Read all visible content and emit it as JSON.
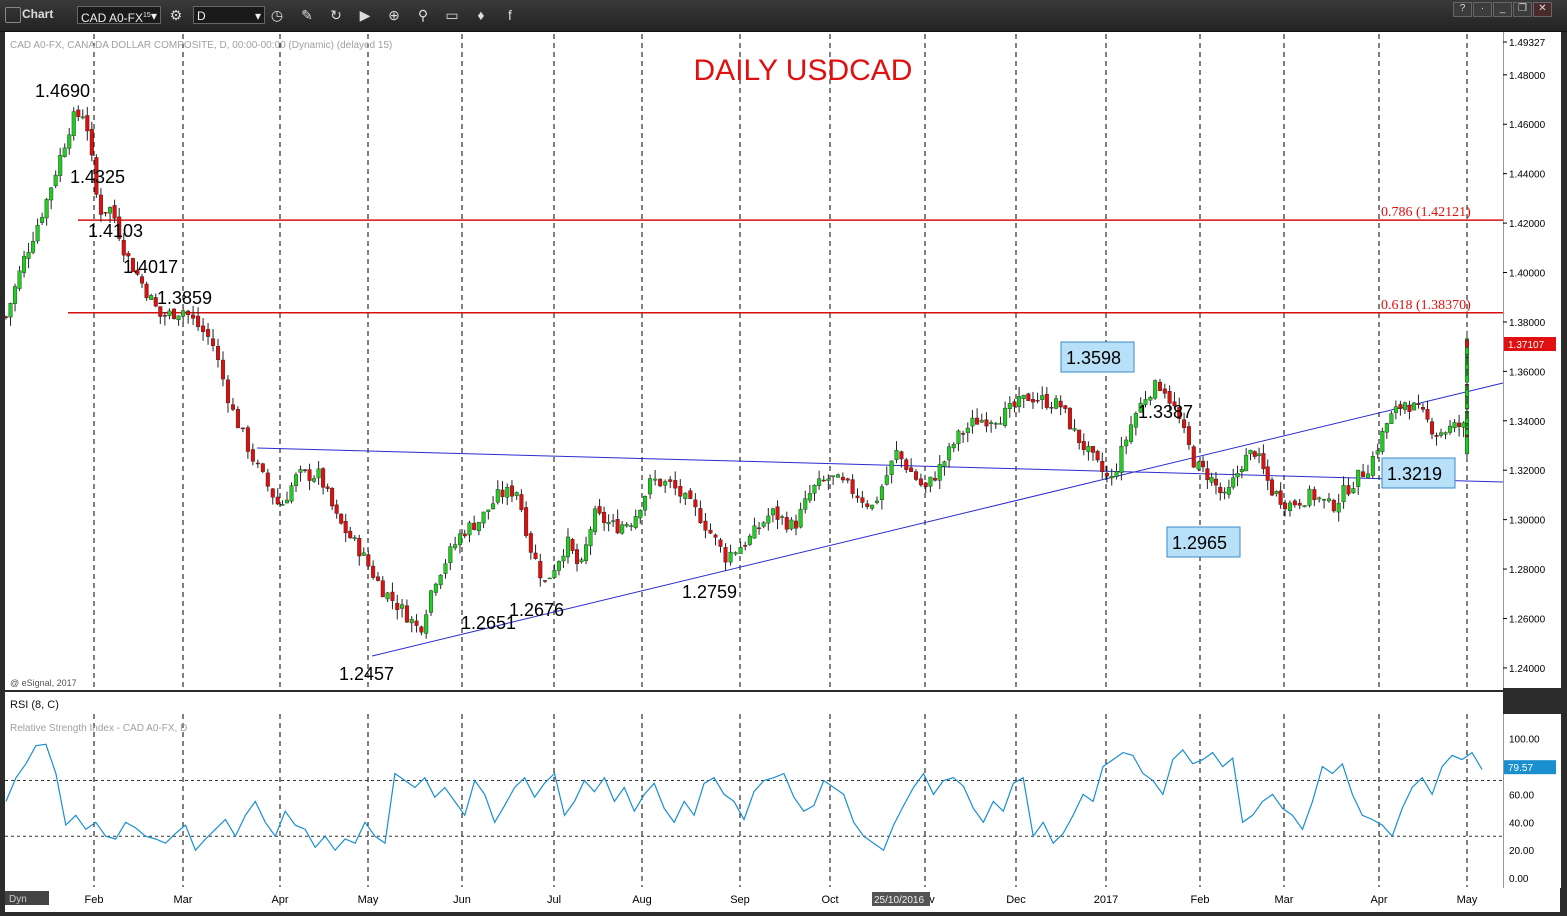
{
  "toolbar": {
    "title": "Chart",
    "symbol": "CAD A0-FX",
    "symbol_sup": "15",
    "interval": "D",
    "tools": [
      "clock-icon",
      "pencil-icon",
      "refresh-icon",
      "play-icon",
      "zoom-icon",
      "link-icon",
      "comment-icon",
      "twitter-icon",
      "facebook-icon"
    ]
  },
  "main_header": "CAD A0-FX, CANADA DOLLAR COMPOSITE, D, 00:00-00:00 (Dynamic) (delayed 15)",
  "copyright": "@ eSignal, 2017",
  "rsi_header": "RSI (8, C)",
  "rsi_sub": "Relative Strength Index - CAD A0-FX, D",
  "dyn_label": "Dyn",
  "date_badge": "25/10/2016",
  "chart_data": {
    "type": "candlestick",
    "title": "DAILY USDCAD",
    "price_ticks": [
      "1.49327",
      "1.48000",
      "1.46000",
      "1.44000",
      "1.42000",
      "1.40000",
      "1.38000",
      "1.36000",
      "1.34000",
      "1.32000",
      "1.30000",
      "1.28000",
      "1.26000",
      "1.24000"
    ],
    "price_tick_values": [
      1.49327,
      1.48,
      1.46,
      1.44,
      1.42,
      1.4,
      1.38,
      1.36,
      1.34,
      1.32,
      1.3,
      1.28,
      1.26,
      1.24
    ],
    "ylim": [
      1.2343,
      1.4953
    ],
    "current_price": "1.37107",
    "current_price_value": 1.37107,
    "months": [
      "Feb",
      "Mar",
      "Apr",
      "May",
      "Jun",
      "Jul",
      "Aug",
      "Sep",
      "Oct",
      "Nov",
      "Dec",
      "2017",
      "Feb",
      "Mar",
      "Apr",
      "May"
    ],
    "fib_levels": [
      {
        "label": "0.786 (1.42121)",
        "value": 1.42121
      },
      {
        "label": "0.618 (1.38370)",
        "value": 1.3837
      }
    ],
    "annotations": [
      {
        "text": "1.4690",
        "boxed": false
      },
      {
        "text": "1.4325",
        "boxed": false
      },
      {
        "text": "1.4103",
        "boxed": false
      },
      {
        "text": "1.4017",
        "boxed": false
      },
      {
        "text": "1.3859",
        "boxed": false
      },
      {
        "text": "1.2457",
        "boxed": false
      },
      {
        "text": "1.2651",
        "boxed": false
      },
      {
        "text": "1.2676",
        "boxed": false
      },
      {
        "text": "1.2759",
        "boxed": false
      },
      {
        "text": "1.3598",
        "boxed": true
      },
      {
        "text": "1.3387",
        "boxed": false
      },
      {
        "text": "1.2965",
        "boxed": true
      },
      {
        "text": "1.3219",
        "boxed": true
      }
    ],
    "price_path": [
      [
        0,
        1.382
      ],
      [
        0.2,
        1.405
      ],
      [
        0.45,
        1.428
      ],
      [
        0.75,
        1.462
      ],
      [
        0.9,
        1.465
      ],
      [
        1.05,
        1.425
      ],
      [
        1.2,
        1.426
      ],
      [
        1.35,
        1.408
      ],
      [
        1.55,
        1.395
      ],
      [
        1.75,
        1.382
      ],
      [
        2.0,
        1.385
      ],
      [
        2.3,
        1.372
      ],
      [
        2.5,
        1.345
      ],
      [
        2.75,
        1.322
      ],
      [
        3.0,
        1.305
      ],
      [
        3.2,
        1.318
      ],
      [
        3.45,
        1.318
      ],
      [
        3.65,
        1.3
      ],
      [
        3.9,
        1.288
      ],
      [
        4.15,
        1.272
      ],
      [
        4.4,
        1.262
      ],
      [
        4.55,
        1.255
      ],
      [
        4.7,
        1.275
      ],
      [
        5.0,
        1.295
      ],
      [
        5.2,
        1.3
      ],
      [
        5.4,
        1.31
      ],
      [
        5.6,
        1.312
      ],
      [
        5.75,
        1.288
      ],
      [
        5.9,
        1.274
      ],
      [
        6.15,
        1.291
      ],
      [
        6.3,
        1.279
      ],
      [
        6.45,
        1.302
      ],
      [
        6.7,
        1.297
      ],
      [
        6.9,
        1.3
      ],
      [
        7.1,
        1.316
      ],
      [
        7.3,
        1.314
      ],
      [
        7.6,
        1.301
      ],
      [
        7.85,
        1.285
      ],
      [
        8.1,
        1.292
      ],
      [
        8.35,
        1.303
      ],
      [
        8.6,
        1.297
      ],
      [
        8.8,
        1.312
      ],
      [
        9.0,
        1.317
      ],
      [
        9.2,
        1.313
      ],
      [
        9.45,
        1.305
      ],
      [
        9.7,
        1.327
      ],
      [
        10.0,
        1.312
      ],
      [
        10.2,
        1.323
      ],
      [
        10.35,
        1.333
      ],
      [
        10.55,
        1.34
      ],
      [
        10.85,
        1.342
      ],
      [
        11.15,
        1.35
      ],
      [
        11.5,
        1.346
      ],
      [
        11.65,
        1.335
      ],
      [
        11.9,
        1.322
      ],
      [
        12.05,
        1.315
      ],
      [
        12.3,
        1.342
      ],
      [
        12.45,
        1.352
      ],
      [
        12.6,
        1.355
      ],
      [
        12.75,
        1.343
      ],
      [
        12.95,
        1.322
      ],
      [
        13.1,
        1.318
      ],
      [
        13.3,
        1.308
      ],
      [
        13.5,
        1.323
      ],
      [
        13.65,
        1.328
      ],
      [
        13.85,
        1.312
      ],
      [
        14.05,
        1.306
      ],
      [
        14.3,
        1.31
      ],
      [
        14.5,
        1.305
      ],
      [
        14.65,
        1.312
      ],
      [
        14.9,
        1.322
      ],
      [
        15.1,
        1.34
      ],
      [
        15.3,
        1.348
      ],
      [
        15.5,
        1.342
      ],
      [
        15.65,
        1.335
      ],
      [
        15.9,
        1.338
      ],
      [
        16.1,
        1.336
      ],
      [
        16.3,
        1.34
      ],
      [
        16.5,
        1.336
      ],
      [
        16.7,
        1.328
      ],
      [
        16.85,
        1.342
      ],
      [
        17.05,
        1.351
      ],
      [
        17.25,
        1.365
      ],
      [
        17.45,
        1.372
      ]
    ],
    "rsi": {
      "ylim": [
        -5,
        112
      ],
      "ticks": [
        "100.00",
        "80.00",
        "60.00",
        "40.00",
        "20.00",
        "0.00"
      ],
      "tick_values": [
        100,
        80,
        60,
        40,
        20,
        0
      ],
      "overbought": 70,
      "oversold": 30,
      "current": "79.57",
      "current_value": 79.57,
      "values": [
        55,
        72,
        82,
        95,
        96,
        75,
        38,
        45,
        35,
        40,
        30,
        28,
        40,
        36,
        30,
        28,
        25,
        32,
        38,
        20,
        28,
        35,
        42,
        30,
        45,
        55,
        40,
        30,
        48,
        38,
        35,
        22,
        30,
        20,
        28,
        25,
        40,
        30,
        25,
        75,
        70,
        65,
        72,
        58,
        65,
        55,
        45,
        70,
        60,
        40,
        52,
        65,
        72,
        58,
        68,
        75,
        45,
        55,
        70,
        62,
        72,
        55,
        65,
        48,
        60,
        68,
        50,
        40,
        55,
        45,
        68,
        72,
        60,
        55,
        42,
        62,
        70,
        72,
        75,
        58,
        48,
        52,
        70,
        65,
        60,
        40,
        30,
        25,
        20,
        38,
        52,
        65,
        75,
        60,
        70,
        72,
        66,
        50,
        40,
        55,
        48,
        68,
        72,
        30,
        40,
        25,
        32,
        45,
        60,
        55,
        80,
        85,
        90,
        88,
        75,
        70,
        60,
        85,
        92,
        82,
        85,
        90,
        80,
        86,
        40,
        45,
        55,
        60,
        50,
        45,
        35,
        55,
        80,
        75,
        82,
        60,
        45,
        42,
        38,
        30,
        50,
        65,
        72,
        60,
        80,
        88,
        85,
        90,
        78
      ]
    }
  }
}
